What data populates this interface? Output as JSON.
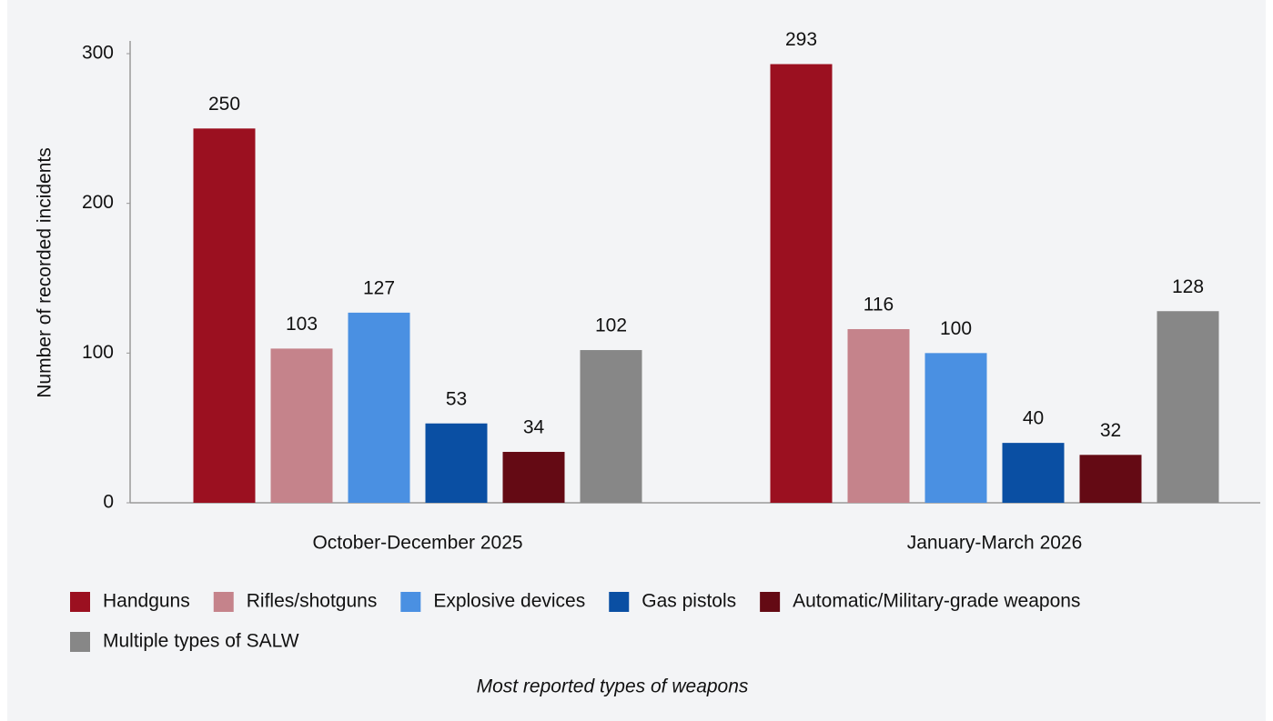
{
  "chart_data": {
    "type": "bar",
    "title": "Most reported types of weapons",
    "ylabel": "Number of recorded incidents",
    "categories": [
      "October-December 2025",
      "January-March 2026"
    ],
    "series": [
      {
        "name": "Handguns",
        "color": "#9b1020",
        "values": [
          250,
          293
        ]
      },
      {
        "name": "Rifles/shotguns",
        "color": "#c5838b",
        "values": [
          103,
          116
        ]
      },
      {
        "name": "Explosive devices",
        "color": "#4a90e2",
        "values": [
          127,
          100
        ]
      },
      {
        "name": "Gas pistols",
        "color": "#0a4fa3",
        "values": [
          53,
          40
        ]
      },
      {
        "name": "Automatic/Military-grade weapons",
        "color": "#640a14",
        "values": [
          34,
          32
        ]
      },
      {
        "name": "Multiple types of SALW",
        "color": "#878787",
        "values": [
          102,
          128
        ]
      }
    ],
    "ylim": [
      0,
      300
    ],
    "yticks": [
      0,
      100,
      200,
      300
    ],
    "grid": false,
    "data_labels": true
  }
}
